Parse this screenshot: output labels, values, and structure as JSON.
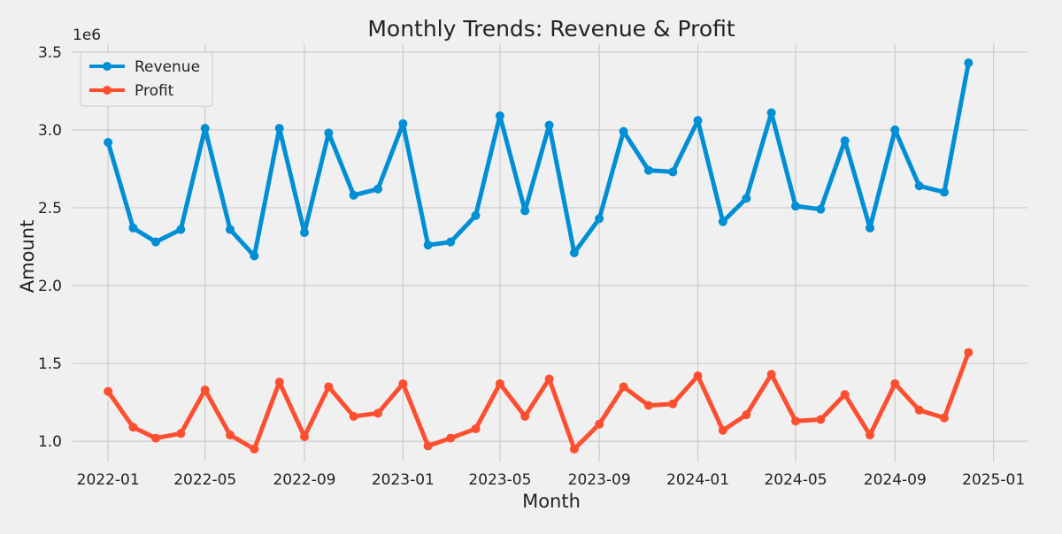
{
  "chart_data": {
    "type": "line",
    "title": "Monthly Trends: Revenue & Profit",
    "xlabel": "Month",
    "ylabel": "Amount",
    "y_offset_label": "1e6",
    "x": [
      "2022-01",
      "2022-02",
      "2022-03",
      "2022-04",
      "2022-05",
      "2022-06",
      "2022-07",
      "2022-08",
      "2022-09",
      "2022-10",
      "2022-11",
      "2022-12",
      "2023-01",
      "2023-02",
      "2023-03",
      "2023-04",
      "2023-05",
      "2023-06",
      "2023-07",
      "2023-08",
      "2023-09",
      "2023-10",
      "2023-11",
      "2023-12",
      "2024-01",
      "2024-02",
      "2024-03",
      "2024-04",
      "2024-05",
      "2024-06",
      "2024-07",
      "2024-08",
      "2024-09",
      "2024-10",
      "2024-11",
      "2024-12"
    ],
    "x_ticks": [
      "2022-01",
      "2022-05",
      "2022-09",
      "2023-01",
      "2023-05",
      "2023-09",
      "2024-01",
      "2024-05",
      "2024-09",
      "2025-01"
    ],
    "y_ticks": [
      1.0,
      1.5,
      2.0,
      2.5,
      3.0,
      3.5
    ],
    "y_tick_labels": [
      "1.0",
      "1.5",
      "2.0",
      "2.5",
      "3.0",
      "3.5"
    ],
    "xlim": [
      "2021-11-18",
      "2025-02-12"
    ],
    "ylim": [
      0.87,
      3.55
    ],
    "grid": true,
    "legend_position": "top-left",
    "series": [
      {
        "name": "Revenue",
        "color": "#008fd5",
        "values": [
          2.92,
          2.37,
          2.28,
          2.36,
          3.01,
          2.36,
          2.19,
          3.01,
          2.34,
          2.98,
          2.58,
          2.62,
          3.04,
          2.26,
          2.28,
          2.45,
          3.09,
          2.48,
          3.03,
          2.21,
          2.43,
          2.99,
          2.74,
          2.73,
          3.06,
          2.41,
          2.56,
          3.11,
          2.51,
          2.49,
          2.93,
          2.37,
          3.0,
          2.64,
          2.6,
          3.43
        ]
      },
      {
        "name": "Profit",
        "color": "#fc4f30",
        "values": [
          1.32,
          1.09,
          1.02,
          1.05,
          1.33,
          1.04,
          0.95,
          1.38,
          1.03,
          1.35,
          1.16,
          1.18,
          1.37,
          0.97,
          1.02,
          1.08,
          1.37,
          1.16,
          1.4,
          0.95,
          1.11,
          1.35,
          1.23,
          1.24,
          1.42,
          1.07,
          1.17,
          1.43,
          1.13,
          1.14,
          1.3,
          1.04,
          1.37,
          1.2,
          1.15,
          1.57
        ]
      }
    ]
  }
}
